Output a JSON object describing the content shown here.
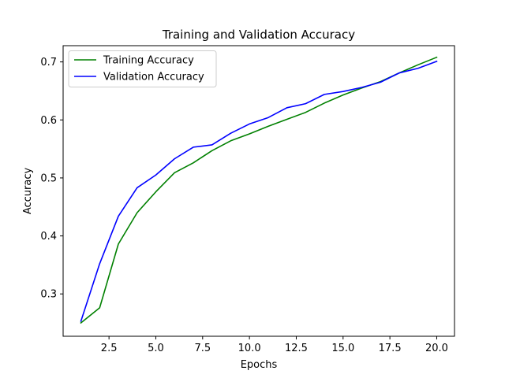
{
  "chart_data": {
    "type": "line",
    "title": "Training and Validation Accuracy",
    "xlabel": "Epochs",
    "ylabel": "Accuracy",
    "xlim": [
      0.05,
      20.95
    ],
    "ylim": [
      0.227,
      0.728
    ],
    "xticks": [
      2.5,
      5.0,
      7.5,
      10.0,
      12.5,
      15.0,
      17.5,
      20.0
    ],
    "xtick_labels": [
      "2.5",
      "5.0",
      "7.5",
      "10.0",
      "12.5",
      "15.0",
      "17.5",
      "20.0"
    ],
    "yticks": [
      0.3,
      0.4,
      0.5,
      0.6,
      0.7
    ],
    "ytick_labels": [
      "0.3",
      "0.4",
      "0.5",
      "0.6",
      "0.7"
    ],
    "grid": false,
    "legend_position": "top-left",
    "x": [
      1,
      2,
      3,
      4,
      5,
      6,
      7,
      8,
      9,
      10,
      11,
      12,
      13,
      14,
      15,
      16,
      17,
      18,
      19,
      20
    ],
    "series": [
      {
        "name": "Training Accuracy",
        "color": "#008000",
        "values": [
          0.25,
          0.276,
          0.386,
          0.44,
          0.476,
          0.509,
          0.526,
          0.547,
          0.564,
          0.576,
          0.589,
          0.601,
          0.613,
          0.629,
          0.643,
          0.655,
          0.666,
          0.681,
          0.695,
          0.708
        ]
      },
      {
        "name": "Validation Accuracy",
        "color": "#0000ff",
        "values": [
          0.253,
          0.352,
          0.434,
          0.483,
          0.505,
          0.533,
          0.553,
          0.557,
          0.577,
          0.593,
          0.604,
          0.621,
          0.628,
          0.644,
          0.649,
          0.656,
          0.665,
          0.681,
          0.689,
          0.701
        ]
      }
    ]
  }
}
